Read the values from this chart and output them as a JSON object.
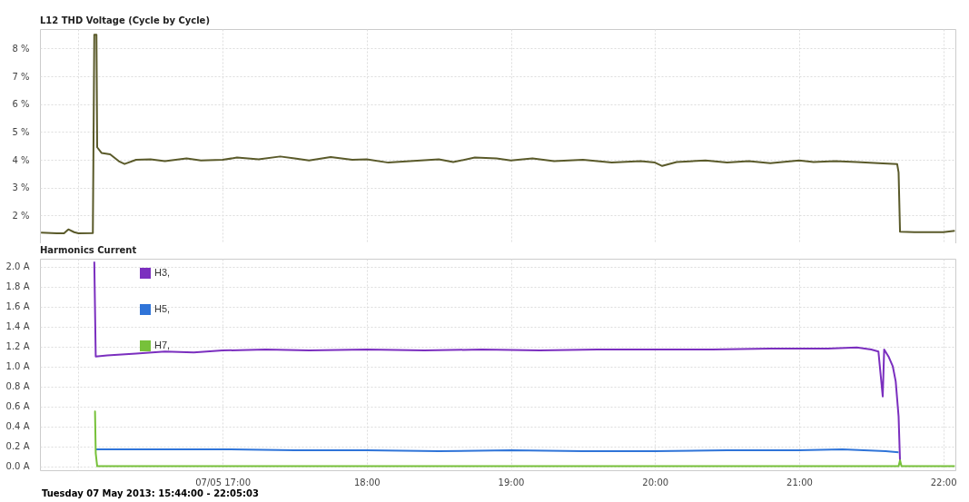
{
  "chart_data": [
    {
      "type": "line",
      "title": "L12 THD Voltage (Cycle by Cycle)",
      "x": [
        15.74,
        15.85,
        15.9,
        15.93,
        15.97,
        16.0,
        16.1,
        16.11,
        16.125,
        16.13,
        16.16,
        16.22,
        16.28,
        16.32,
        16.4,
        16.5,
        16.6,
        16.75,
        16.85,
        17.0,
        17.1,
        17.25,
        17.4,
        17.5,
        17.6,
        17.75,
        17.9,
        18.0,
        18.15,
        18.3,
        18.5,
        18.6,
        18.75,
        18.9,
        19.0,
        19.15,
        19.3,
        19.5,
        19.7,
        19.9,
        20.0,
        20.05,
        20.15,
        20.35,
        20.5,
        20.65,
        20.8,
        21.0,
        21.1,
        21.25,
        21.4,
        21.55,
        21.68,
        21.69,
        21.7,
        21.8,
        22.0,
        22.08
      ],
      "series": [
        {
          "color": "#5a5a2a",
          "values": [
            1.38,
            1.36,
            1.36,
            1.5,
            1.4,
            1.36,
            1.37,
            8.5,
            8.5,
            4.45,
            4.25,
            4.2,
            3.95,
            3.85,
            4.0,
            4.02,
            3.95,
            4.05,
            3.98,
            4.0,
            4.08,
            4.02,
            4.12,
            4.05,
            3.98,
            4.1,
            4.0,
            4.02,
            3.9,
            3.95,
            4.02,
            3.92,
            4.08,
            4.05,
            3.98,
            4.05,
            3.95,
            4.0,
            3.9,
            3.95,
            3.9,
            3.78,
            3.92,
            3.98,
            3.9,
            3.95,
            3.88,
            3.98,
            3.92,
            3.95,
            3.92,
            3.88,
            3.85,
            3.55,
            1.42,
            1.4,
            1.4,
            1.45
          ]
        }
      ],
      "xlim": [
        15.733,
        22.084
      ],
      "xticks": [
        {
          "value": 16,
          "label": null
        },
        {
          "value": 17,
          "label": null
        },
        {
          "value": 18,
          "label": null
        },
        {
          "value": 19,
          "label": null
        },
        {
          "value": 20,
          "label": null
        },
        {
          "value": 21,
          "label": null
        },
        {
          "value": 22,
          "label": null
        }
      ],
      "ylim": [
        1.0,
        8.7
      ],
      "yticks": [
        {
          "value": 2,
          "label": "2 %"
        },
        {
          "value": 3,
          "label": "3 %"
        },
        {
          "value": 4,
          "label": "4 %"
        },
        {
          "value": 5,
          "label": "5 %"
        },
        {
          "value": 6,
          "label": "6 %"
        },
        {
          "value": 7,
          "label": "7 %"
        },
        {
          "value": 8,
          "label": "8 %"
        }
      ],
      "grid": true,
      "tick_labels": "y"
    },
    {
      "type": "line",
      "title": "Harmonics Current",
      "annotations": [
        "Tuesday 07 May 2013: 15:44:00 - 22:05:03"
      ],
      "series": [
        {
          "name": "H3,",
          "color": "#7b2fbf",
          "x": [
            16.11,
            16.12,
            16.2,
            16.4,
            16.6,
            16.8,
            17.0,
            17.3,
            17.6,
            18.0,
            18.4,
            18.8,
            19.2,
            19.6,
            20.0,
            20.4,
            20.8,
            21.2,
            21.4,
            21.5,
            21.55,
            21.58,
            21.59,
            21.62,
            21.65,
            21.67,
            21.69,
            21.7
          ],
          "values": [
            2.05,
            1.1,
            1.11,
            1.13,
            1.15,
            1.14,
            1.16,
            1.17,
            1.16,
            1.17,
            1.16,
            1.17,
            1.16,
            1.17,
            1.17,
            1.17,
            1.18,
            1.18,
            1.19,
            1.17,
            1.15,
            0.7,
            1.17,
            1.1,
            1.0,
            0.85,
            0.5,
            0.05
          ]
        },
        {
          "name": "H5,",
          "color": "#2f74d8",
          "x": [
            16.12,
            16.5,
            17.0,
            17.5,
            18.0,
            18.5,
            19.0,
            19.5,
            20.0,
            20.5,
            21.0,
            21.3,
            21.6,
            21.69
          ],
          "values": [
            0.17,
            0.17,
            0.17,
            0.16,
            0.16,
            0.15,
            0.16,
            0.15,
            0.15,
            0.16,
            0.16,
            0.17,
            0.15,
            0.14
          ]
        },
        {
          "name": "H7,",
          "color": "#77c13a",
          "x": [
            16.11,
            16.115,
            16.12,
            16.13,
            17.0,
            18.0,
            19.0,
            20.0,
            21.0,
            21.69,
            21.7,
            21.71,
            22.08
          ],
          "values": [
            0.55,
            0.55,
            0.13,
            0.0,
            0.0,
            0.0,
            0.0,
            0.0,
            0.0,
            0.0,
            0.06,
            0.0,
            0.0
          ]
        }
      ],
      "xlim": [
        15.733,
        22.084
      ],
      "xticks": [
        {
          "value": 16,
          "label": null
        },
        {
          "value": 17,
          "label": "07/05 17:00"
        },
        {
          "value": 18,
          "label": "18:00"
        },
        {
          "value": 19,
          "label": "19:00"
        },
        {
          "value": 20,
          "label": "20:00"
        },
        {
          "value": 21,
          "label": "21:00"
        },
        {
          "value": 22,
          "label": "22:00"
        }
      ],
      "ylim": [
        -0.04,
        2.08
      ],
      "yticks": [
        {
          "value": 0,
          "label": "0.0 A"
        },
        {
          "value": 0.2,
          "label": "0.2 A"
        },
        {
          "value": 0.4,
          "label": "0.4 A"
        },
        {
          "value": 0.6,
          "label": "0.6 A"
        },
        {
          "value": 0.8,
          "label": "0.8 A"
        },
        {
          "value": 1.0,
          "label": "1.0 A"
        },
        {
          "value": 1.2,
          "label": "1.2 A"
        },
        {
          "value": 1.4,
          "label": "1.4 A"
        },
        {
          "value": 1.6,
          "label": "1.6 A"
        },
        {
          "value": 1.8,
          "label": "1.8 A"
        },
        {
          "value": 2.0,
          "label": "2.0 A"
        }
      ],
      "grid": true,
      "legend": "top left"
    }
  ]
}
